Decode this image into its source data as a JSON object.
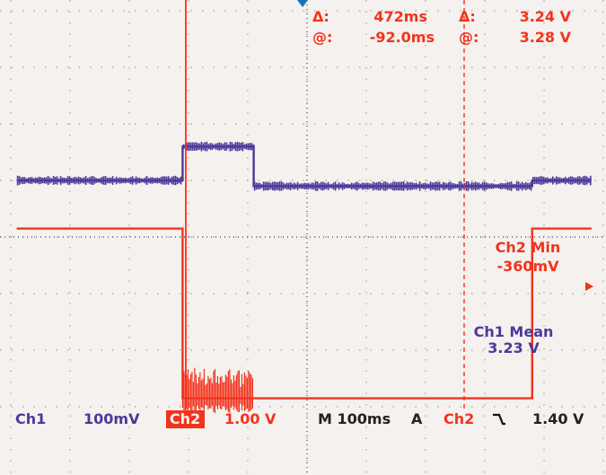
{
  "colors": {
    "ch1": "#4a3a9a",
    "ch2": "#f2331d",
    "grid": "#8a8a8a",
    "screen": "#f4f1ee"
  },
  "cursor_readout": {
    "delta_symbol": "Δ:",
    "at_symbol": "@:",
    "time_delta": "472ms",
    "time_at": "-92.0ms",
    "volt_delta": "3.24 V",
    "volt_at": "3.28 V"
  },
  "measurements": {
    "ch2_min_label": "Ch2 Min",
    "ch2_min_value": "-360mV",
    "ch1_mean_label": "Ch1 Mean",
    "ch1_mean_value": "3.23 V"
  },
  "status_bar": {
    "ch1_label": "Ch1",
    "ch1_scale": "100mV",
    "ch2_label": "Ch2",
    "ch2_scale": "1.00 V",
    "timebase": "M 100ms",
    "trigger_mode": "A",
    "trigger_source": "Ch2",
    "trigger_slope_icon": "falling-edge-icon",
    "trigger_level": "1.40 V"
  },
  "chart_data": {
    "type": "line",
    "x_unit": "ms",
    "x_per_division": 100,
    "series": [
      {
        "name": "Ch1",
        "x": [
          -490,
          -210,
          -210,
          -90,
          -90,
          380,
          380,
          480
        ],
        "y": [
          1.0,
          1.0,
          1.6,
          1.6,
          0.9,
          0.9,
          1.0,
          1.0
        ],
        "noise_div": 0.1,
        "volts_per_div": 0.1
      },
      {
        "name": "Ch2",
        "x": [
          -490,
          -210,
          -210,
          380,
          380,
          480
        ],
        "y": [
          0.15,
          0.15,
          -2.85,
          -2.85,
          0.15,
          0.15
        ],
        "burst_x": [
          -210,
          -90
        ],
        "burst_amplitude_div": 0.5,
        "volts_per_div": 1.0
      }
    ]
  }
}
